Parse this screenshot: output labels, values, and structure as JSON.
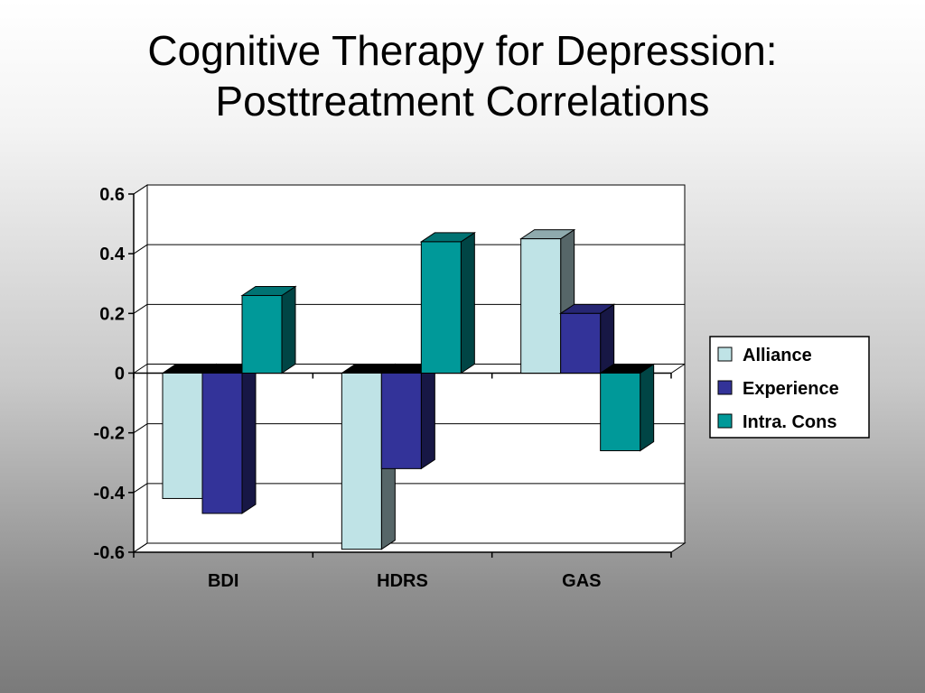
{
  "slide": {
    "title_line1": "Cognitive Therapy for Depression:",
    "title_line2": "Posttreatment Correlations"
  },
  "chart_data": {
    "type": "bar",
    "style": "3d-clustered-column",
    "categories": [
      "BDI",
      "HDRS",
      "GAS"
    ],
    "series": [
      {
        "name": "Alliance",
        "values": [
          -0.42,
          -0.59,
          0.45
        ],
        "color": "#bfe3e6"
      },
      {
        "name": "Experience",
        "values": [
          -0.47,
          -0.32,
          0.2
        ],
        "color": "#333399"
      },
      {
        "name": "Intra. Cons",
        "values": [
          0.26,
          0.44,
          -0.26
        ],
        "color": "#009999"
      }
    ],
    "ylim": [
      -0.6,
      0.6
    ],
    "yticks": [
      0.6,
      0.4,
      0.2,
      0,
      -0.2,
      -0.4,
      -0.6
    ],
    "ytick_labels": [
      "0.6",
      "0.4",
      "0.2",
      "0",
      "-0.2",
      "-0.4",
      "-0.6"
    ],
    "grid": true,
    "legend": "right",
    "xlabel": "",
    "ylabel": ""
  }
}
